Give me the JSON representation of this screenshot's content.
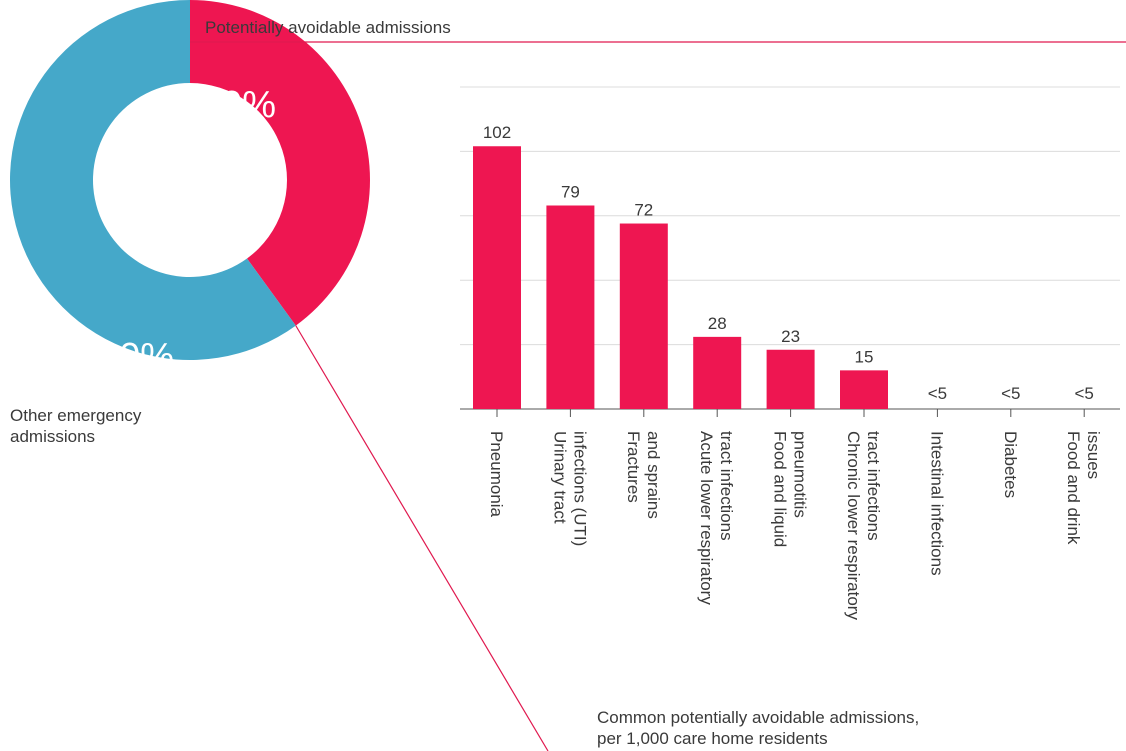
{
  "donut": {
    "top_label": "Potentially avoidable admissions",
    "bottom_label_line1": "Other emergency",
    "bottom_label_line2": "admissions",
    "segments": [
      {
        "name": "Potentially avoidable admissions",
        "value": 40,
        "label": "40%",
        "color": "#ee1651"
      },
      {
        "name": "Other emergency admissions",
        "value": 60,
        "label": "60%",
        "color": "#45a8c9"
      }
    ]
  },
  "caption": {
    "line1": "Common potentially avoidable admissions,",
    "line2": "per 1,000 care home residents"
  },
  "colors": {
    "bar": "#ee1651",
    "accent_line": "#e0194f",
    "grid": "#dcdcdc",
    "axis": "#555555"
  },
  "chart_data": {
    "type": "bar",
    "categories": [
      [
        "Pneumonia"
      ],
      [
        "Urinary tract",
        "infections (UTI)"
      ],
      [
        "Fractures",
        "and sprains"
      ],
      [
        "Acute lower respiratory",
        "tract infections"
      ],
      [
        "Food and liquid",
        "pneumotitis"
      ],
      [
        "Chronic lower respiratory",
        "tract infections"
      ],
      [
        "Intestinal infections"
      ],
      [
        "Diabetes"
      ],
      [
        "Food and drink",
        "issues"
      ]
    ],
    "values": [
      102,
      79,
      72,
      28,
      23,
      15,
      null,
      null,
      null
    ],
    "value_labels": [
      "102",
      "79",
      "72",
      "28",
      "23",
      "15",
      "<5",
      "<5",
      "<5"
    ],
    "ylim": [
      0,
      125
    ],
    "grid": true,
    "title": "",
    "xlabel": "",
    "ylabel": ""
  }
}
